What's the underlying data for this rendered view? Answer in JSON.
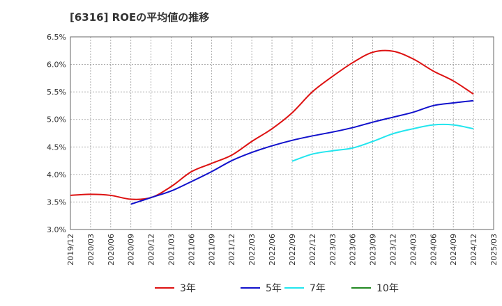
{
  "chart_data": {
    "type": "line",
    "title": "[6316]  ROEの平均値の推移",
    "x_ticks": [
      "2019/12",
      "2020/03",
      "2020/06",
      "2020/09",
      "2020/12",
      "2021/03",
      "2021/06",
      "2021/09",
      "2021/12",
      "2022/03",
      "2022/06",
      "2022/09",
      "2022/12",
      "2023/03",
      "2023/06",
      "2023/09",
      "2023/12",
      "2024/03",
      "2024/06",
      "2024/09",
      "2024/12",
      "2025/03"
    ],
    "y_ticks": [
      "3.0%",
      "3.5%",
      "4.0%",
      "4.5%",
      "5.0%",
      "5.5%",
      "6.0%",
      "6.5%"
    ],
    "ylim": [
      3.0,
      6.5
    ],
    "grid": true,
    "legend_position": "bottom",
    "series": [
      {
        "name": "3年",
        "color": "#dd1111",
        "points": [
          [
            "2019/12",
            3.62
          ],
          [
            "2020/03",
            3.64
          ],
          [
            "2020/06",
            3.62
          ],
          [
            "2020/09",
            3.55
          ],
          [
            "2020/12",
            3.58
          ],
          [
            "2021/03",
            3.78
          ],
          [
            "2021/06",
            4.05
          ],
          [
            "2021/09",
            4.2
          ],
          [
            "2021/12",
            4.35
          ],
          [
            "2022/03",
            4.6
          ],
          [
            "2022/06",
            4.83
          ],
          [
            "2022/09",
            5.12
          ],
          [
            "2022/12",
            5.5
          ],
          [
            "2023/03",
            5.78
          ],
          [
            "2023/06",
            6.03
          ],
          [
            "2023/09",
            6.22
          ],
          [
            "2023/12",
            6.24
          ],
          [
            "2024/03",
            6.1
          ],
          [
            "2024/06",
            5.88
          ],
          [
            "2024/09",
            5.7
          ],
          [
            "2024/12",
            5.46
          ]
        ]
      },
      {
        "name": "5年",
        "color": "#1111cc",
        "points": [
          [
            "2020/09",
            3.46
          ],
          [
            "2020/12",
            3.58
          ],
          [
            "2021/03",
            3.7
          ],
          [
            "2021/06",
            3.87
          ],
          [
            "2021/09",
            4.05
          ],
          [
            "2021/12",
            4.25
          ],
          [
            "2022/03",
            4.4
          ],
          [
            "2022/06",
            4.52
          ],
          [
            "2022/09",
            4.62
          ],
          [
            "2022/12",
            4.7
          ],
          [
            "2023/03",
            4.77
          ],
          [
            "2023/06",
            4.85
          ],
          [
            "2023/09",
            4.95
          ],
          [
            "2023/12",
            5.04
          ],
          [
            "2024/03",
            5.13
          ],
          [
            "2024/06",
            5.25
          ],
          [
            "2024/09",
            5.3
          ],
          [
            "2024/12",
            5.34
          ]
        ]
      },
      {
        "name": "7年",
        "color": "#22e5ee",
        "points": [
          [
            "2022/09",
            4.24
          ],
          [
            "2022/12",
            4.37
          ],
          [
            "2023/03",
            4.43
          ],
          [
            "2023/06",
            4.48
          ],
          [
            "2023/09",
            4.6
          ],
          [
            "2023/12",
            4.74
          ],
          [
            "2024/03",
            4.83
          ],
          [
            "2024/06",
            4.9
          ],
          [
            "2024/09",
            4.9
          ],
          [
            "2024/12",
            4.83
          ]
        ]
      },
      {
        "name": "10年",
        "color": "#228822",
        "points": []
      }
    ]
  }
}
